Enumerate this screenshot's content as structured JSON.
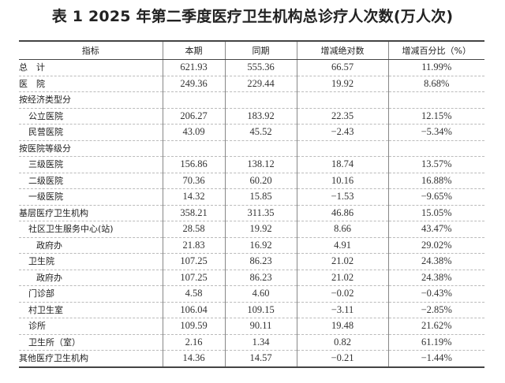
{
  "title": "表 1 2025 年第二季度医疗卫生机构总诊疗人次数(万人次)",
  "columns": [
    "指标",
    "本期",
    "同期",
    "增减绝对数",
    "增减百分比（%）"
  ],
  "rows": [
    {
      "label": "总　计",
      "level": 0,
      "values": [
        "621.93",
        "555.36",
        "66.57",
        "11.99%"
      ]
    },
    {
      "label": "医　院",
      "level": 0,
      "values": [
        "249.36",
        "229.44",
        "19.92",
        "8.68%"
      ]
    },
    {
      "label": "按经济类型分",
      "level": 0,
      "values": [
        "",
        "",
        "",
        ""
      ]
    },
    {
      "label": "公立医院",
      "level": 1,
      "values": [
        "206.27",
        "183.92",
        "22.35",
        "12.15%"
      ]
    },
    {
      "label": "民营医院",
      "level": 1,
      "values": [
        "43.09",
        "45.52",
        "−2.43",
        "−5.34%"
      ]
    },
    {
      "label": "按医院等级分",
      "level": 0,
      "values": [
        "",
        "",
        "",
        ""
      ]
    },
    {
      "label": "三级医院",
      "level": 1,
      "values": [
        "156.86",
        "138.12",
        "18.74",
        "13.57%"
      ]
    },
    {
      "label": "二级医院",
      "level": 1,
      "values": [
        "70.36",
        "60.20",
        "10.16",
        "16.88%"
      ]
    },
    {
      "label": "一级医院",
      "level": 1,
      "values": [
        "14.32",
        "15.85",
        "−1.53",
        "−9.65%"
      ]
    },
    {
      "label": "基层医疗卫生机构",
      "level": 0,
      "values": [
        "358.21",
        "311.35",
        "46.86",
        "15.05%"
      ]
    },
    {
      "label": "社区卫生服务中心(站)",
      "level": 1,
      "values": [
        "28.58",
        "19.92",
        "8.66",
        "43.47%"
      ]
    },
    {
      "label": "政府办",
      "level": 2,
      "values": [
        "21.83",
        "16.92",
        "4.91",
        "29.02%"
      ]
    },
    {
      "label": "卫生院",
      "level": 1,
      "values": [
        "107.25",
        "86.23",
        "21.02",
        "24.38%"
      ]
    },
    {
      "label": "政府办",
      "level": 2,
      "values": [
        "107.25",
        "86.23",
        "21.02",
        "24.38%"
      ]
    },
    {
      "label": "门诊部",
      "level": 1,
      "values": [
        "4.58",
        "4.60",
        "−0.02",
        "−0.43%"
      ]
    },
    {
      "label": "村卫生室",
      "level": 1,
      "values": [
        "106.04",
        "109.15",
        "−3.11",
        "−2.85%"
      ]
    },
    {
      "label": "诊所",
      "level": 1,
      "values": [
        "109.59",
        "90.11",
        "19.48",
        "21.62%"
      ]
    },
    {
      "label": "卫生所（室）",
      "level": 1,
      "values": [
        "2.16",
        "1.34",
        "0.82",
        "61.19%"
      ]
    },
    {
      "label": "其他医疗卫生机构",
      "level": 0,
      "values": [
        "14.36",
        "14.57",
        "−0.21",
        "−1.44%"
      ]
    }
  ]
}
